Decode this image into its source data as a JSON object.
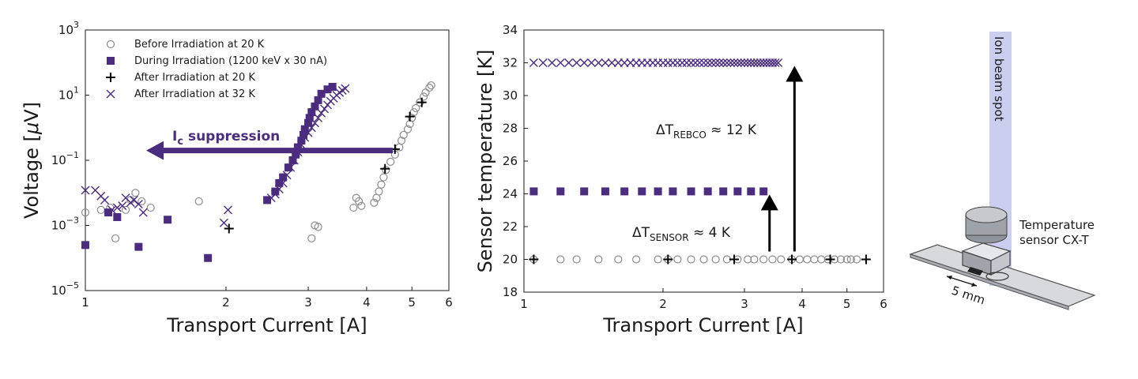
{
  "colors": {
    "purple": "#4b2d7f",
    "gray": "#8c8c8c",
    "black": "#000000",
    "beam": "#c5c9ec"
  },
  "chart_data": [
    {
      "type": "scatter",
      "xlabel": "Transport Current [A]",
      "ylabel_prefix": "Voltage [",
      "ylabel_mu": "μ",
      "ylabel_suffix": "V]",
      "x_scale": "log",
      "y_scale": "log",
      "xlim": [
        1,
        6
      ],
      "ylim": [
        1e-05,
        1000
      ],
      "x_ticks": [
        1,
        2,
        3,
        4,
        5,
        6
      ],
      "y_ticks": [
        1e-05,
        0.001,
        0.1,
        10,
        1000
      ],
      "y_tick_labels": [
        {
          "base": "10",
          "exp": "−5"
        },
        {
          "base": "10",
          "exp": "−3"
        },
        {
          "base": "10",
          "exp": "−1"
        },
        {
          "base": "10",
          "exp": "1"
        },
        {
          "base": "10",
          "exp": "3"
        }
      ],
      "legend_position": "top-left",
      "series": [
        {
          "name": "Before Irradiation at 20 K",
          "marker": "circle-open",
          "color": "gray",
          "points": [
            [
              1.0,
              0.0025
            ],
            [
              1.08,
              0.003
            ],
            [
              1.13,
              0.0035
            ],
            [
              1.16,
              0.0004
            ],
            [
              1.22,
              0.003
            ],
            [
              1.25,
              0.006
            ],
            [
              1.28,
              0.01
            ],
            [
              1.32,
              0.0055
            ],
            [
              1.38,
              0.0035
            ],
            [
              1.75,
              0.0055
            ],
            [
              3.05,
              0.0004
            ],
            [
              3.1,
              0.001
            ],
            [
              3.15,
              0.0009
            ],
            [
              3.75,
              0.0035
            ],
            [
              3.8,
              0.007
            ],
            [
              3.85,
              0.0055
            ],
            [
              3.9,
              0.004
            ],
            [
              4.15,
              0.005
            ],
            [
              4.2,
              0.007
            ],
            [
              4.25,
              0.011
            ],
            [
              4.3,
              0.018
            ],
            [
              4.35,
              0.03
            ],
            [
              4.4,
              0.05
            ],
            [
              4.5,
              0.09
            ],
            [
              4.6,
              0.15
            ],
            [
              4.7,
              0.25
            ],
            [
              4.75,
              0.4
            ],
            [
              4.8,
              0.6
            ],
            [
              4.9,
              0.9
            ],
            [
              4.95,
              1.3
            ],
            [
              5.0,
              2
            ],
            [
              5.05,
              3
            ],
            [
              5.1,
              4
            ],
            [
              5.2,
              6
            ],
            [
              5.3,
              9
            ],
            [
              5.35,
              12
            ],
            [
              5.45,
              17
            ],
            [
              5.5,
              20
            ]
          ]
        },
        {
          "name": "During Irradiation (1200 keV x 30 nA)",
          "marker": "square-filled",
          "color": "purple",
          "points": [
            [
              1.0,
              0.00025
            ],
            [
              1.12,
              0.0025
            ],
            [
              1.17,
              0.0018
            ],
            [
              1.3,
              0.00022
            ],
            [
              1.5,
              0.0015
            ],
            [
              1.83,
              0.0001
            ],
            [
              2.45,
              0.006
            ],
            [
              2.55,
              0.011
            ],
            [
              2.6,
              0.02
            ],
            [
              2.65,
              0.03
            ],
            [
              2.72,
              0.06
            ],
            [
              2.78,
              0.1
            ],
            [
              2.82,
              0.15
            ],
            [
              2.85,
              0.25
            ],
            [
              2.9,
              0.4
            ],
            [
              2.93,
              0.6
            ],
            [
              2.95,
              0.9
            ],
            [
              3.0,
              1.4
            ],
            [
              3.02,
              2
            ],
            [
              3.05,
              3
            ],
            [
              3.1,
              4.5
            ],
            [
              3.15,
              7
            ],
            [
              3.2,
              11
            ],
            [
              3.3,
              15
            ],
            [
              3.38,
              18
            ]
          ]
        },
        {
          "name": "After Irradiation at 20 K",
          "marker": "plus",
          "color": "black",
          "points": [
            [
              2.03,
              0.0008
            ],
            [
              4.38,
              0.055
            ],
            [
              4.6,
              0.22
            ],
            [
              4.95,
              2.2
            ],
            [
              5.25,
              6
            ]
          ]
        },
        {
          "name": "After Irradiation at 32 K",
          "marker": "x",
          "color": "purple",
          "points": [
            [
              1.0,
              0.012
            ],
            [
              1.05,
              0.012
            ],
            [
              1.08,
              0.008
            ],
            [
              1.1,
              0.006
            ],
            [
              1.14,
              0.003
            ],
            [
              1.17,
              0.0035
            ],
            [
              1.2,
              0.004
            ],
            [
              1.22,
              0.007
            ],
            [
              1.25,
              0.005
            ],
            [
              1.27,
              0.006
            ],
            [
              1.3,
              0.0045
            ],
            [
              1.33,
              0.0025
            ],
            [
              1.98,
              0.0012
            ],
            [
              2.02,
              0.003
            ],
            [
              2.5,
              0.007
            ],
            [
              2.55,
              0.009
            ],
            [
              2.6,
              0.013
            ],
            [
              2.65,
              0.02
            ],
            [
              2.7,
              0.035
            ],
            [
              2.75,
              0.06
            ],
            [
              2.8,
              0.1
            ],
            [
              2.85,
              0.18
            ],
            [
              2.9,
              0.3
            ],
            [
              2.95,
              0.5
            ],
            [
              3.0,
              0.7
            ],
            [
              3.05,
              1
            ],
            [
              3.1,
              1.4
            ],
            [
              3.15,
              2
            ],
            [
              3.2,
              2.8
            ],
            [
              3.25,
              3.8
            ],
            [
              3.3,
              5
            ],
            [
              3.35,
              6.5
            ],
            [
              3.4,
              8
            ],
            [
              3.45,
              10
            ],
            [
              3.5,
              12
            ],
            [
              3.55,
              14
            ],
            [
              3.6,
              16
            ]
          ]
        }
      ],
      "annotation": {
        "label_main": "I",
        "label_sub": "c",
        "label_rest": " suppression",
        "arrow_from_x": 4.55,
        "arrow_to_x": 1.35,
        "arrow_y": 0.2
      }
    },
    {
      "type": "scatter",
      "xlabel": "Transport Current [A]",
      "ylabel": "Sensor temperature [K]",
      "x_scale": "log",
      "y_scale": "linear",
      "xlim": [
        1,
        6
      ],
      "ylim": [
        18,
        34
      ],
      "x_ticks": [
        1,
        2,
        3,
        4,
        5,
        6
      ],
      "y_ticks": [
        18,
        20,
        22,
        24,
        26,
        28,
        30,
        32,
        34
      ],
      "series": [
        {
          "name": "Before Irradiation at 20 K",
          "marker": "circle-open",
          "color": "gray",
          "x": [
            1.05,
            1.2,
            1.3,
            1.45,
            1.6,
            1.75,
            1.95,
            2.05,
            2.15,
            2.3,
            2.45,
            2.6,
            2.75,
            2.9,
            3.05,
            3.15,
            3.3,
            3.45,
            3.6,
            3.8,
            3.95,
            4.1,
            4.25,
            4.4,
            4.55,
            4.7,
            4.85,
            5.0,
            5.1,
            5.25
          ],
          "y_value": 20
        },
        {
          "name": "During Irradiation (1200 keV x 30 nA)",
          "marker": "square-filled",
          "color": "purple",
          "x": [
            1.05,
            1.2,
            1.35,
            1.5,
            1.65,
            1.8,
            1.95,
            2.1,
            2.3,
            2.5,
            2.7,
            2.9,
            3.1,
            3.3
          ],
          "y_value": 24.15
        },
        {
          "name": "After Irradiation at 20 K",
          "marker": "plus",
          "color": "black",
          "x": [
            1.05,
            2.05,
            2.85,
            3.8,
            4.6,
            5.5
          ],
          "y_value": 20
        },
        {
          "name": "After Irradiation at 32 K",
          "marker": "x",
          "color": "purple",
          "x": [
            1.05,
            1.1,
            1.15,
            1.2,
            1.25,
            1.3,
            1.35,
            1.4,
            1.45,
            1.5,
            1.55,
            1.6,
            1.65,
            1.7,
            1.75,
            1.8,
            1.85,
            1.9,
            1.95,
            2.0,
            2.05,
            2.1,
            2.15,
            2.2,
            2.25,
            2.3,
            2.35,
            2.4,
            2.45,
            2.5,
            2.55,
            2.6,
            2.65,
            2.7,
            2.75,
            2.8,
            2.85,
            2.9,
            2.95,
            3.0,
            3.05,
            3.1,
            3.15,
            3.2,
            3.25,
            3.3,
            3.35,
            3.4,
            3.45,
            3.5,
            3.55
          ],
          "y_value": 32
        }
      ],
      "annotations": [
        {
          "id": "sensor",
          "pre": "ΔT",
          "sub": "SENSOR",
          "post": " ≈ 4 K",
          "arrow_x": 3.4,
          "from_y": 20,
          "to_y": 24.15
        },
        {
          "id": "rebco",
          "pre": "ΔT",
          "sub": "REBCO",
          "post": " ≈ 12 K",
          "arrow_x": 3.85,
          "from_y": 20,
          "to_y": 32
        }
      ]
    }
  ],
  "schematic": {
    "beam_label": "Ion beam spot",
    "sensor_label_line1": "Temperature",
    "sensor_label_line2": "sensor CX-T",
    "scale_label": "5 mm"
  }
}
